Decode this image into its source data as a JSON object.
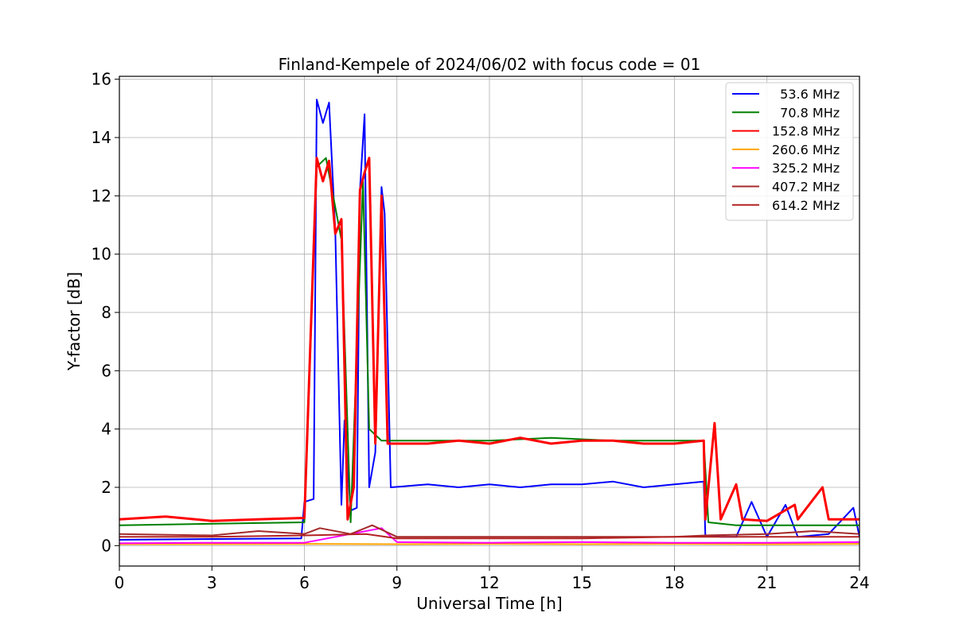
{
  "chart_data": {
    "type": "line",
    "title": "Finland-Kempele of 2024/06/02 with focus code = 01",
    "xlabel": "Universal Time [h]",
    "ylabel": "Y-factor [dB]",
    "xlim": [
      0,
      24
    ],
    "ylim": [
      -0.7,
      16.1
    ],
    "xticks": [
      0,
      3,
      6,
      9,
      12,
      15,
      18,
      21,
      24
    ],
    "yticks": [
      0,
      2,
      4,
      6,
      8,
      10,
      12,
      14,
      16
    ],
    "grid": true,
    "legend_position": "top-right",
    "series": [
      {
        "name": "  53.6 MHz",
        "color": "#0000ff",
        "points": [
          [
            0,
            0.2
          ],
          [
            5.9,
            0.25
          ],
          [
            6.0,
            1.5
          ],
          [
            6.3,
            1.6
          ],
          [
            6.4,
            15.3
          ],
          [
            6.6,
            14.5
          ],
          [
            6.8,
            15.2
          ],
          [
            7.0,
            10.8
          ],
          [
            7.2,
            1.4
          ],
          [
            7.3,
            4.3
          ],
          [
            7.5,
            1.2
          ],
          [
            7.7,
            1.3
          ],
          [
            7.8,
            12.2
          ],
          [
            7.95,
            14.8
          ],
          [
            8.1,
            2.0
          ],
          [
            8.3,
            3.2
          ],
          [
            8.5,
            12.3
          ],
          [
            8.6,
            11.4
          ],
          [
            8.8,
            2.0
          ],
          [
            10,
            2.1
          ],
          [
            11,
            2.0
          ],
          [
            12,
            2.1
          ],
          [
            13,
            2.0
          ],
          [
            14,
            2.1
          ],
          [
            15,
            2.1
          ],
          [
            16,
            2.2
          ],
          [
            17,
            2.0
          ],
          [
            18,
            2.1
          ],
          [
            18.95,
            2.2
          ],
          [
            19.0,
            0.35
          ],
          [
            19.5,
            0.3
          ],
          [
            20.0,
            0.3
          ],
          [
            20.5,
            1.5
          ],
          [
            21,
            0.3
          ],
          [
            21.6,
            1.4
          ],
          [
            22,
            0.3
          ],
          [
            23,
            0.4
          ],
          [
            23.8,
            1.3
          ],
          [
            24,
            0.3
          ]
        ]
      },
      {
        "name": "  70.8 MHz",
        "color": "#008000",
        "points": [
          [
            0,
            0.7
          ],
          [
            6.0,
            0.8
          ],
          [
            6.4,
            13.0
          ],
          [
            6.7,
            13.3
          ],
          [
            7.2,
            10.5
          ],
          [
            7.5,
            0.8
          ],
          [
            7.9,
            12.5
          ],
          [
            8.1,
            4.0
          ],
          [
            8.5,
            3.6
          ],
          [
            10,
            3.6
          ],
          [
            12,
            3.6
          ],
          [
            14,
            3.7
          ],
          [
            16,
            3.6
          ],
          [
            18,
            3.6
          ],
          [
            18.95,
            3.6
          ],
          [
            19.1,
            0.8
          ],
          [
            20,
            0.7
          ],
          [
            22,
            0.7
          ],
          [
            24,
            0.7
          ]
        ]
      },
      {
        "name": "152.8 MHz",
        "color": "#ff0000",
        "points": [
          [
            0,
            0.9
          ],
          [
            1.5,
            1.0
          ],
          [
            3,
            0.85
          ],
          [
            4.5,
            0.9
          ],
          [
            6.0,
            0.95
          ],
          [
            6.4,
            13.3
          ],
          [
            6.6,
            12.5
          ],
          [
            6.8,
            13.2
          ],
          [
            7.0,
            10.7
          ],
          [
            7.2,
            11.2
          ],
          [
            7.4,
            0.9
          ],
          [
            7.6,
            2.0
          ],
          [
            7.8,
            12.2
          ],
          [
            7.95,
            12.8
          ],
          [
            8.1,
            13.3
          ],
          [
            8.3,
            3.5
          ],
          [
            8.5,
            12.0
          ],
          [
            8.7,
            3.5
          ],
          [
            10,
            3.5
          ],
          [
            11,
            3.6
          ],
          [
            12,
            3.5
          ],
          [
            13,
            3.7
          ],
          [
            14,
            3.5
          ],
          [
            15,
            3.6
          ],
          [
            16,
            3.6
          ],
          [
            17,
            3.5
          ],
          [
            18,
            3.5
          ],
          [
            18.95,
            3.6
          ],
          [
            19.0,
            0.9
          ],
          [
            19.3,
            4.2
          ],
          [
            19.5,
            0.9
          ],
          [
            20,
            2.1
          ],
          [
            20.2,
            0.9
          ],
          [
            21,
            0.85
          ],
          [
            21.9,
            1.4
          ],
          [
            22,
            0.9
          ],
          [
            22.8,
            2.0
          ],
          [
            23,
            0.9
          ],
          [
            24,
            0.9
          ]
        ]
      },
      {
        "name": "260.6 MHz",
        "color": "#ffa500",
        "points": [
          [
            0,
            0.05
          ],
          [
            6,
            0.06
          ],
          [
            9,
            0.05
          ],
          [
            12,
            0.06
          ],
          [
            15,
            0.05
          ],
          [
            18,
            0.06
          ],
          [
            21,
            0.05
          ],
          [
            24,
            0.06
          ]
        ]
      },
      {
        "name": "325.2 MHz",
        "color": "#ff00ff",
        "points": [
          [
            0,
            0.08
          ],
          [
            3,
            0.1
          ],
          [
            6,
            0.1
          ],
          [
            8.5,
            0.6
          ],
          [
            9,
            0.12
          ],
          [
            12,
            0.1
          ],
          [
            15,
            0.12
          ],
          [
            18,
            0.1
          ],
          [
            21,
            0.1
          ],
          [
            24,
            0.12
          ]
        ]
      },
      {
        "name": "407.2 MHz",
        "color": "#a52a2a",
        "points": [
          [
            0,
            0.4
          ],
          [
            3,
            0.35
          ],
          [
            4.5,
            0.5
          ],
          [
            6,
            0.4
          ],
          [
            6.5,
            0.6
          ],
          [
            7.5,
            0.4
          ],
          [
            8.2,
            0.7
          ],
          [
            9,
            0.3
          ],
          [
            12,
            0.3
          ],
          [
            15,
            0.3
          ],
          [
            18,
            0.3
          ],
          [
            19,
            0.35
          ],
          [
            21,
            0.4
          ],
          [
            22.5,
            0.5
          ],
          [
            24,
            0.4
          ]
        ]
      },
      {
        "name": "614.2 MHz",
        "color": "#b22222",
        "points": [
          [
            0,
            0.3
          ],
          [
            3,
            0.3
          ],
          [
            6,
            0.35
          ],
          [
            8,
            0.4
          ],
          [
            9,
            0.25
          ],
          [
            12,
            0.25
          ],
          [
            15,
            0.25
          ],
          [
            18,
            0.3
          ],
          [
            21,
            0.3
          ],
          [
            24,
            0.3
          ]
        ]
      }
    ]
  }
}
